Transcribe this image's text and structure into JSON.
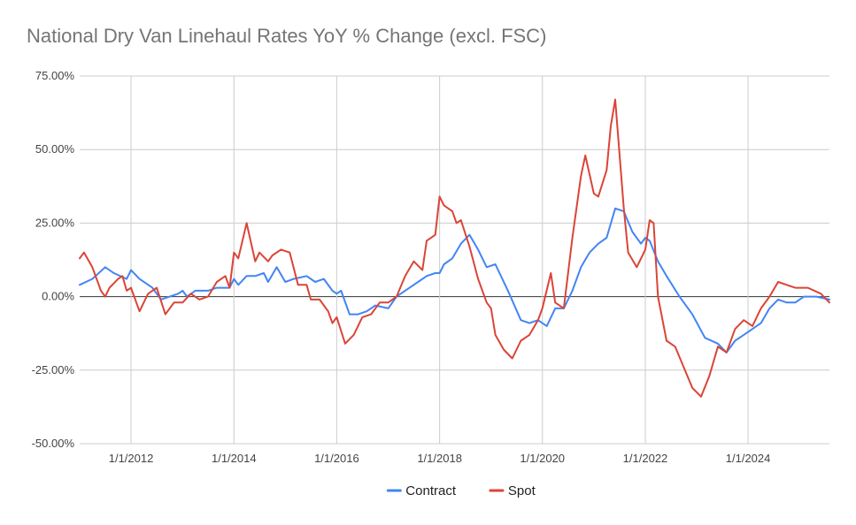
{
  "chart_data": {
    "type": "line",
    "title": "National Dry Van Linehaul Rates YoY % Change (excl. FSC)",
    "xlabel": "",
    "ylabel": "",
    "ylim": [
      -50,
      75
    ],
    "y_ticks": [
      "75.00%",
      "50.00%",
      "25.00%",
      "0.00%",
      "-25.00%",
      "-50.00%"
    ],
    "y_tick_values": [
      75,
      50,
      25,
      0,
      -25,
      -50
    ],
    "x_ticks": [
      "1/1/2012",
      "1/1/2014",
      "1/1/2016",
      "1/1/2018",
      "1/1/2020",
      "1/1/2022",
      "1/1/2024"
    ],
    "x_tick_values": [
      "2012-01-01",
      "2014-01-01",
      "2016-01-01",
      "2018-01-01",
      "2020-01-01",
      "2022-01-01",
      "2024-01-01"
    ],
    "x_range": [
      "2011-01-01",
      "2025-08-01"
    ],
    "legend_position": "bottom",
    "grid": true,
    "series": [
      {
        "name": "Contract",
        "color": "#4285f4",
        "points": [
          [
            "2011-01-01",
            4
          ],
          [
            "2011-04-01",
            6
          ],
          [
            "2011-07-01",
            10
          ],
          [
            "2011-09-01",
            8
          ],
          [
            "2011-12-01",
            6
          ],
          [
            "2012-01-01",
            9
          ],
          [
            "2012-03-01",
            6
          ],
          [
            "2012-06-01",
            3
          ],
          [
            "2012-08-01",
            -1
          ],
          [
            "2012-10-01",
            0
          ],
          [
            "2012-12-01",
            1
          ],
          [
            "2013-01-01",
            2
          ],
          [
            "2013-02-01",
            0
          ],
          [
            "2013-04-01",
            2
          ],
          [
            "2013-07-01",
            2
          ],
          [
            "2013-09-01",
            3
          ],
          [
            "2013-12-01",
            3
          ],
          [
            "2014-01-01",
            6
          ],
          [
            "2014-02-01",
            4
          ],
          [
            "2014-04-01",
            7
          ],
          [
            "2014-06-01",
            7
          ],
          [
            "2014-08-01",
            8
          ],
          [
            "2014-09-01",
            5
          ],
          [
            "2014-11-01",
            10
          ],
          [
            "2015-01-01",
            5
          ],
          [
            "2015-03-01",
            6
          ],
          [
            "2015-06-01",
            7
          ],
          [
            "2015-08-01",
            5
          ],
          [
            "2015-10-01",
            6
          ],
          [
            "2015-12-01",
            2
          ],
          [
            "2016-01-01",
            1
          ],
          [
            "2016-02-01",
            2
          ],
          [
            "2016-04-01",
            -6
          ],
          [
            "2016-06-01",
            -6
          ],
          [
            "2016-08-01",
            -5
          ],
          [
            "2016-10-01",
            -3
          ],
          [
            "2017-01-01",
            -4
          ],
          [
            "2017-03-01",
            0
          ],
          [
            "2017-06-01",
            3
          ],
          [
            "2017-08-01",
            5
          ],
          [
            "2017-10-01",
            7
          ],
          [
            "2017-12-01",
            8
          ],
          [
            "2018-01-01",
            8
          ],
          [
            "2018-02-01",
            11
          ],
          [
            "2018-04-01",
            13
          ],
          [
            "2018-06-01",
            18
          ],
          [
            "2018-08-01",
            21
          ],
          [
            "2018-10-01",
            16
          ],
          [
            "2018-12-01",
            10
          ],
          [
            "2019-02-01",
            11
          ],
          [
            "2019-05-01",
            2
          ],
          [
            "2019-08-01",
            -8
          ],
          [
            "2019-10-01",
            -9
          ],
          [
            "2019-12-01",
            -8
          ],
          [
            "2020-01-01",
            -9
          ],
          [
            "2020-02-01",
            -10
          ],
          [
            "2020-04-01",
            -4
          ],
          [
            "2020-06-01",
            -4
          ],
          [
            "2020-08-01",
            2
          ],
          [
            "2020-10-01",
            10
          ],
          [
            "2020-12-01",
            15
          ],
          [
            "2021-02-01",
            18
          ],
          [
            "2021-04-01",
            20
          ],
          [
            "2021-06-01",
            30
          ],
          [
            "2021-08-01",
            29
          ],
          [
            "2021-10-01",
            22
          ],
          [
            "2021-12-01",
            18
          ],
          [
            "2022-01-01",
            20
          ],
          [
            "2022-02-01",
            19
          ],
          [
            "2022-04-01",
            12
          ],
          [
            "2022-06-01",
            7
          ],
          [
            "2022-09-01",
            0
          ],
          [
            "2022-12-01",
            -6
          ],
          [
            "2023-03-01",
            -14
          ],
          [
            "2023-06-01",
            -16
          ],
          [
            "2023-08-01",
            -19
          ],
          [
            "2023-10-01",
            -15
          ],
          [
            "2023-12-01",
            -13
          ],
          [
            "2024-02-01",
            -11
          ],
          [
            "2024-04-01",
            -9
          ],
          [
            "2024-06-01",
            -4
          ],
          [
            "2024-08-01",
            -1
          ],
          [
            "2024-10-01",
            -2
          ],
          [
            "2024-12-01",
            -2
          ],
          [
            "2025-02-01",
            0
          ],
          [
            "2025-05-01",
            0
          ],
          [
            "2025-08-01",
            -1
          ]
        ]
      },
      {
        "name": "Spot",
        "color": "#db4437",
        "points": [
          [
            "2011-01-01",
            13
          ],
          [
            "2011-02-01",
            15
          ],
          [
            "2011-04-01",
            10
          ],
          [
            "2011-06-01",
            2
          ],
          [
            "2011-07-01",
            0
          ],
          [
            "2011-08-01",
            3
          ],
          [
            "2011-10-01",
            6
          ],
          [
            "2011-11-01",
            7
          ],
          [
            "2011-12-01",
            2
          ],
          [
            "2012-01-01",
            3
          ],
          [
            "2012-03-01",
            -5
          ],
          [
            "2012-05-01",
            1
          ],
          [
            "2012-07-01",
            3
          ],
          [
            "2012-09-01",
            -6
          ],
          [
            "2012-11-01",
            -2
          ],
          [
            "2013-01-01",
            -2
          ],
          [
            "2013-03-01",
            1
          ],
          [
            "2013-05-01",
            -1
          ],
          [
            "2013-07-01",
            0
          ],
          [
            "2013-09-01",
            5
          ],
          [
            "2013-11-01",
            7
          ],
          [
            "2013-12-01",
            3
          ],
          [
            "2014-01-01",
            15
          ],
          [
            "2014-02-01",
            13
          ],
          [
            "2014-04-01",
            25
          ],
          [
            "2014-06-01",
            12
          ],
          [
            "2014-07-01",
            15
          ],
          [
            "2014-09-01",
            12
          ],
          [
            "2014-10-01",
            14
          ],
          [
            "2014-12-01",
            16
          ],
          [
            "2015-02-01",
            15
          ],
          [
            "2015-04-01",
            4
          ],
          [
            "2015-06-01",
            4
          ],
          [
            "2015-07-01",
            -1
          ],
          [
            "2015-09-01",
            -1
          ],
          [
            "2015-11-01",
            -5
          ],
          [
            "2015-12-01",
            -9
          ],
          [
            "2016-01-01",
            -7
          ],
          [
            "2016-03-01",
            -16
          ],
          [
            "2016-05-01",
            -13
          ],
          [
            "2016-07-01",
            -7
          ],
          [
            "2016-09-01",
            -6
          ],
          [
            "2016-11-01",
            -2
          ],
          [
            "2017-01-01",
            -2
          ],
          [
            "2017-03-01",
            0
          ],
          [
            "2017-05-01",
            7
          ],
          [
            "2017-07-01",
            12
          ],
          [
            "2017-09-01",
            9
          ],
          [
            "2017-10-01",
            19
          ],
          [
            "2017-12-01",
            21
          ],
          [
            "2018-01-01",
            34
          ],
          [
            "2018-02-01",
            31
          ],
          [
            "2018-04-01",
            29
          ],
          [
            "2018-05-01",
            25
          ],
          [
            "2018-06-01",
            26
          ],
          [
            "2018-08-01",
            17
          ],
          [
            "2018-10-01",
            6
          ],
          [
            "2018-12-01",
            -2
          ],
          [
            "2019-01-01",
            -4
          ],
          [
            "2019-02-01",
            -13
          ],
          [
            "2019-04-01",
            -18
          ],
          [
            "2019-06-01",
            -21
          ],
          [
            "2019-08-01",
            -15
          ],
          [
            "2019-10-01",
            -13
          ],
          [
            "2019-12-01",
            -8
          ],
          [
            "2020-01-01",
            -4
          ],
          [
            "2020-03-01",
            8
          ],
          [
            "2020-04-01",
            -2
          ],
          [
            "2020-06-01",
            -4
          ],
          [
            "2020-08-01",
            20
          ],
          [
            "2020-10-01",
            41
          ],
          [
            "2020-11-01",
            48
          ],
          [
            "2021-01-01",
            35
          ],
          [
            "2021-02-01",
            34
          ],
          [
            "2021-04-01",
            43
          ],
          [
            "2021-05-01",
            58
          ],
          [
            "2021-06-01",
            67
          ],
          [
            "2021-08-01",
            30
          ],
          [
            "2021-09-01",
            15
          ],
          [
            "2021-11-01",
            10
          ],
          [
            "2022-01-01",
            16
          ],
          [
            "2022-02-01",
            26
          ],
          [
            "2022-03-01",
            25
          ],
          [
            "2022-04-01",
            0
          ],
          [
            "2022-06-01",
            -15
          ],
          [
            "2022-08-01",
            -17
          ],
          [
            "2022-10-01",
            -24
          ],
          [
            "2022-12-01",
            -31
          ],
          [
            "2023-02-01",
            -34
          ],
          [
            "2023-04-01",
            -27
          ],
          [
            "2023-06-01",
            -17
          ],
          [
            "2023-08-01",
            -19
          ],
          [
            "2023-10-01",
            -11
          ],
          [
            "2023-12-01",
            -8
          ],
          [
            "2024-02-01",
            -10
          ],
          [
            "2024-04-01",
            -4
          ],
          [
            "2024-06-01",
            0
          ],
          [
            "2024-08-01",
            5
          ],
          [
            "2024-10-01",
            4
          ],
          [
            "2024-12-01",
            3
          ],
          [
            "2025-03-01",
            3
          ],
          [
            "2025-06-01",
            1
          ],
          [
            "2025-08-01",
            -2
          ]
        ]
      }
    ]
  }
}
